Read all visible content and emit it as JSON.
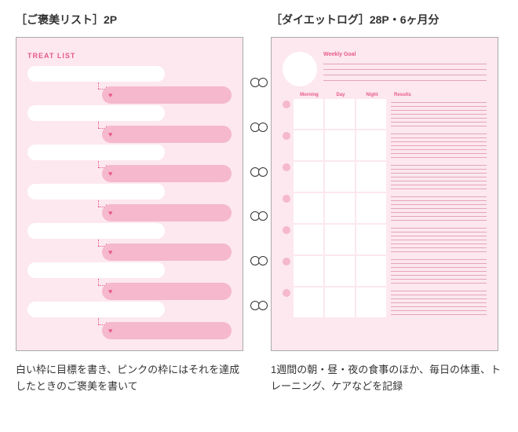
{
  "left": {
    "header": "［ご褒美リスト］2P",
    "title": "TREAT LIST",
    "caption": "白い枠に目標を書き、ピンクの枠にはそれを達成したときのご褒美を書いて",
    "row_count": 7
  },
  "right": {
    "header": "［ダイエットログ］28P・6ヶ月分",
    "weekly_label": "Weekly Goal",
    "col_morning": "Morning",
    "col_day": "Day",
    "col_night": "Night",
    "col_results": "Results",
    "caption": "1週間の朝・昼・夜の食事のほか、毎日の体重、トレーニング、ケアなどを記録",
    "row_count": 7
  },
  "colors": {
    "page_bg": "#fce8ee",
    "accent": "#e85a8a",
    "pink_fill": "#f5b8cc",
    "line": "#e4a5bb"
  }
}
